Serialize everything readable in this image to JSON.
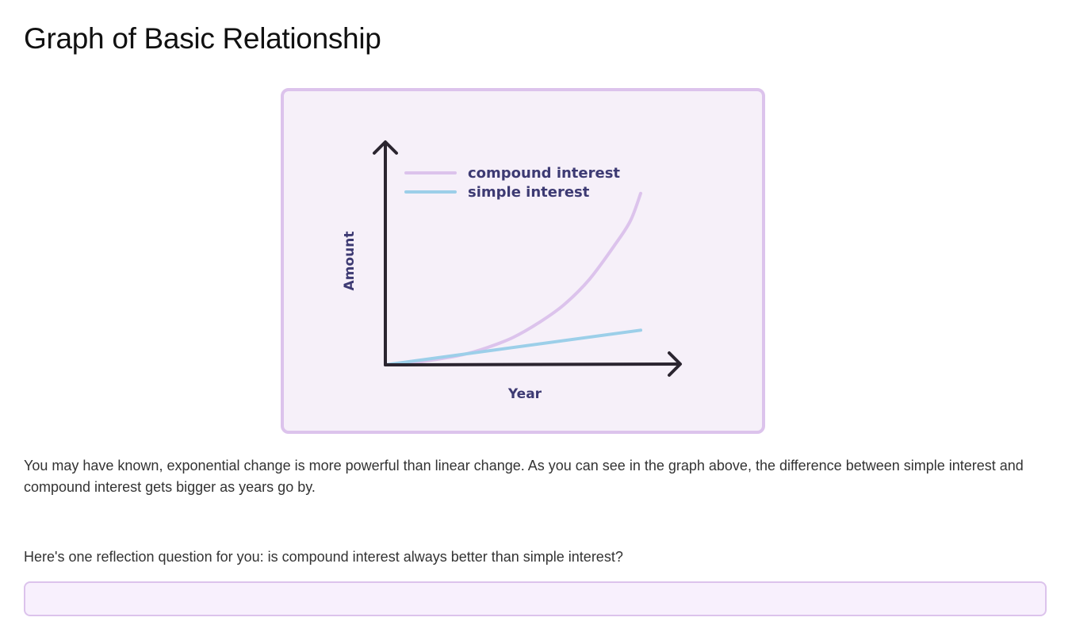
{
  "page": {
    "title": "Graph of Basic Relationship",
    "paragraph": "You may have known, exponential change is more powerful than linear change. As you can see in the graph above, the difference between simple interest and compound interest gets bigger as years go by.",
    "question": "Here's one reflection question for you: is compound interest always better than simple interest?"
  },
  "answer_input": {
    "value": "",
    "placeholder": ""
  },
  "colors": {
    "compound_line": "#dcc3ec",
    "simple_line": "#9ccfe9",
    "axis": "#2b2530",
    "label_text": "#3d3a73",
    "card_border": "#dcc3ec",
    "card_background": "#f6f0f9"
  },
  "chart_data": {
    "type": "line",
    "title": "",
    "xlabel": "Year",
    "ylabel": "Amount",
    "legend_placement": "top-left",
    "grid": false,
    "tick_labels": false,
    "xlim": [
      0,
      10
    ],
    "ylim": [
      0,
      10
    ],
    "series": [
      {
        "name": "compound interest",
        "color": "#dcc3ec",
        "x": [
          0,
          1,
          2,
          3,
          4,
          5,
          6,
          7,
          8,
          9,
          9.6,
          10
        ],
        "y": [
          0,
          0.1,
          0.3,
          0.55,
          0.95,
          1.5,
          2.3,
          3.3,
          4.7,
          6.6,
          7.9,
          9.4
        ]
      },
      {
        "name": "simple interest",
        "color": "#9ccfe9",
        "x": [
          0,
          10
        ],
        "y": [
          0,
          1.9
        ]
      }
    ]
  }
}
